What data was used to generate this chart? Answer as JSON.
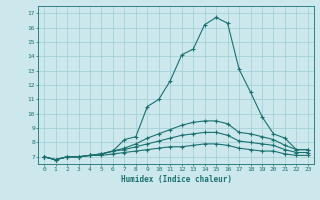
{
  "xlabel": "Humidex (Indice chaleur)",
  "background_color": "#cce8ec",
  "grid_color": "#9ecdd4",
  "line_color": "#1a7070",
  "xlim": [
    -0.5,
    23.5
  ],
  "ylim": [
    6.5,
    17.5
  ],
  "xticks": [
    0,
    1,
    2,
    3,
    4,
    5,
    6,
    7,
    8,
    9,
    10,
    11,
    12,
    13,
    14,
    15,
    16,
    17,
    18,
    19,
    20,
    21,
    22,
    23
  ],
  "yticks": [
    7,
    8,
    9,
    10,
    11,
    12,
    13,
    14,
    15,
    16,
    17
  ],
  "series": [
    [
      7.0,
      6.8,
      7.0,
      7.0,
      7.1,
      7.2,
      7.4,
      8.2,
      8.4,
      10.5,
      11.0,
      12.3,
      14.1,
      14.5,
      16.2,
      16.7,
      16.3,
      13.1,
      11.5,
      9.8,
      8.6,
      8.3,
      7.5,
      7.5
    ],
    [
      7.0,
      6.8,
      7.0,
      7.0,
      7.1,
      7.2,
      7.4,
      7.6,
      7.9,
      8.3,
      8.6,
      8.9,
      9.2,
      9.4,
      9.5,
      9.5,
      9.3,
      8.7,
      8.6,
      8.4,
      8.2,
      7.8,
      7.5,
      7.5
    ],
    [
      7.0,
      6.8,
      7.0,
      7.0,
      7.1,
      7.2,
      7.4,
      7.5,
      7.7,
      7.9,
      8.1,
      8.3,
      8.5,
      8.6,
      8.7,
      8.7,
      8.5,
      8.1,
      8.0,
      7.9,
      7.8,
      7.5,
      7.3,
      7.3
    ],
    [
      7.0,
      6.8,
      7.0,
      7.0,
      7.1,
      7.1,
      7.2,
      7.3,
      7.4,
      7.5,
      7.6,
      7.7,
      7.7,
      7.8,
      7.9,
      7.9,
      7.8,
      7.6,
      7.5,
      7.4,
      7.4,
      7.2,
      7.1,
      7.1
    ]
  ]
}
